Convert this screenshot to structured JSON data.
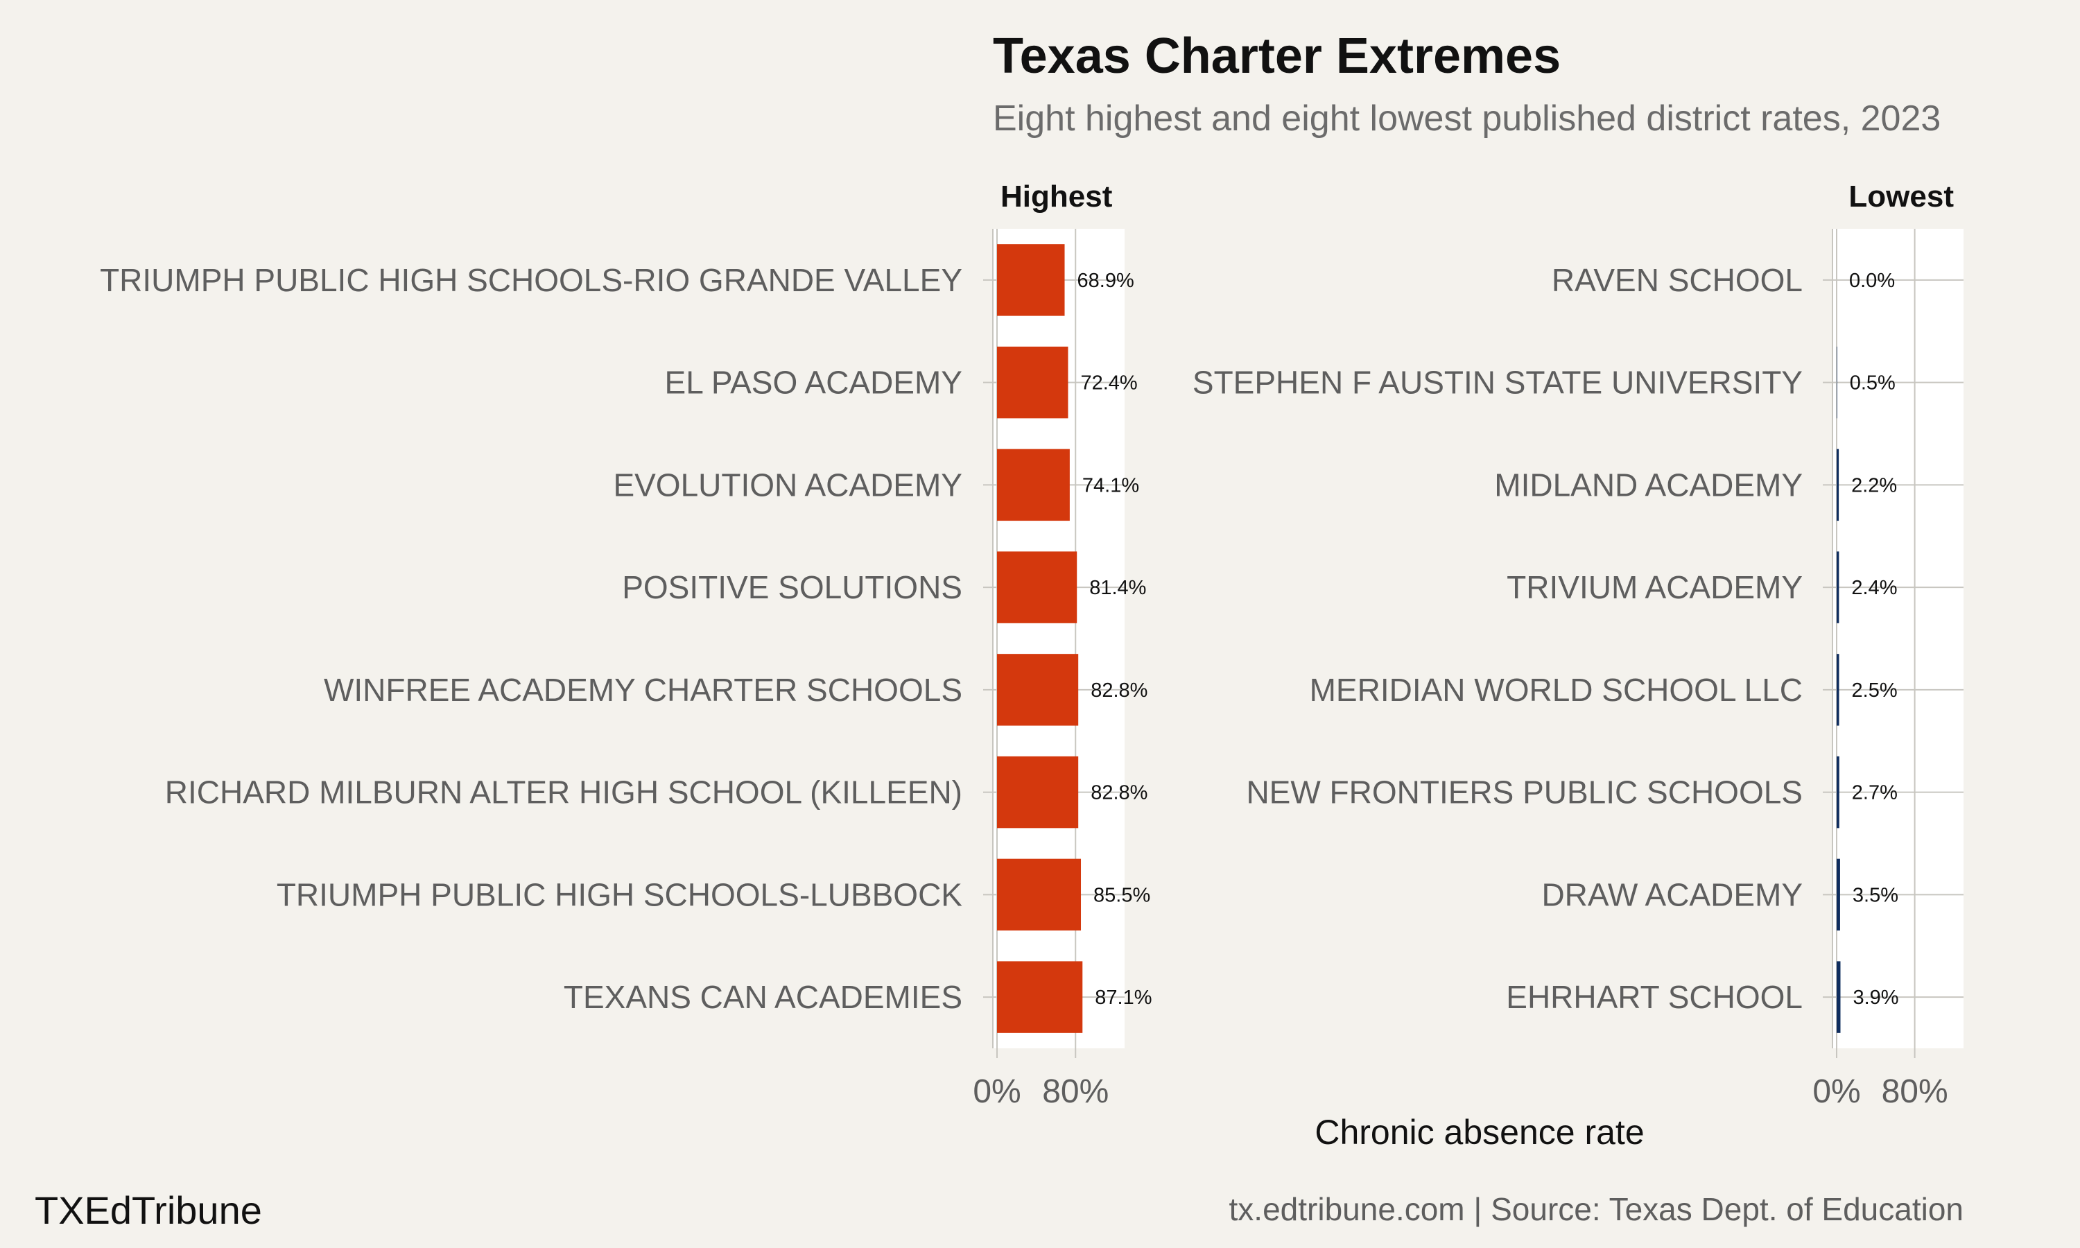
{
  "chart_data": {
    "type": "bar",
    "orientation": "horizontal",
    "title": "Texas Charter Extremes",
    "subtitle": "Eight highest and eight lowest published district rates, 2023",
    "xlabel": "Chronic absence rate",
    "xlim": [
      0,
      130
    ],
    "x_ticks": [
      0,
      80
    ],
    "x_tick_labels": [
      "0%",
      "80%"
    ],
    "grid": true,
    "panels": [
      {
        "label": "Highest",
        "color": "#d4380d",
        "categories": [
          "TRIUMPH PUBLIC HIGH SCHOOLS-RIO GRANDE VALLEY",
          "EL PASO ACADEMY",
          "EVOLUTION ACADEMY",
          "POSITIVE SOLUTIONS",
          "WINFREE ACADEMY CHARTER SCHOOLS",
          "RICHARD MILBURN ALTER HIGH SCHOOL (KILLEEN)",
          "TRIUMPH PUBLIC HIGH SCHOOLS-LUBBOCK",
          "TEXANS CAN ACADEMIES"
        ],
        "values": [
          68.9,
          72.4,
          74.1,
          81.4,
          82.8,
          82.8,
          85.5,
          87.1
        ],
        "value_labels": [
          "68.9%",
          "72.4%",
          "74.1%",
          "81.4%",
          "82.8%",
          "82.8%",
          "85.5%",
          "87.1%"
        ]
      },
      {
        "label": "Lowest",
        "color": "#0f2d5e",
        "categories": [
          "RAVEN SCHOOL",
          "STEPHEN F AUSTIN STATE UNIVERSITY",
          "MIDLAND ACADEMY",
          "TRIVIUM ACADEMY",
          "MERIDIAN WORLD SCHOOL LLC",
          "NEW FRONTIERS PUBLIC SCHOOLS",
          "DRAW ACADEMY",
          "EHRHART SCHOOL"
        ],
        "values": [
          0.0,
          0.5,
          2.2,
          2.4,
          2.5,
          2.7,
          3.5,
          3.9
        ],
        "value_labels": [
          "0.0%",
          "0.5%",
          "2.2%",
          "2.4%",
          "2.5%",
          "2.7%",
          "3.5%",
          "3.9%"
        ]
      }
    ]
  },
  "footer": {
    "brand": "TXEdTribune",
    "source": "tx.edtribune.com | Source: Texas Dept. of Education"
  },
  "colors": {
    "background": "#f4f2ed",
    "panel_background": "#ffffff",
    "grid": "#c8c6c0"
  }
}
